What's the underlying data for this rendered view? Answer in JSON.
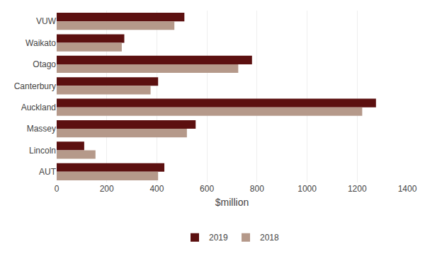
{
  "chart_data": {
    "type": "bar",
    "orientation": "horizontal",
    "categories": [
      "VUW",
      "Waikato",
      "Otago",
      "Canterbury",
      "Auckland",
      "Massey",
      "Lincoln",
      "AUT"
    ],
    "series": [
      {
        "name": "2019",
        "color": "#5c1010",
        "values": [
          510,
          270,
          780,
          405,
          1275,
          555,
          110,
          430
        ]
      },
      {
        "name": "2018",
        "color": "#b5998a",
        "values": [
          470,
          260,
          725,
          375,
          1220,
          520,
          155,
          405
        ]
      }
    ],
    "xlabel": "$million",
    "xlim": [
      0,
      1400
    ],
    "xticks": [
      0,
      200,
      400,
      600,
      800,
      1000,
      1200,
      1400
    ],
    "grid": true,
    "legend": "bottom"
  }
}
